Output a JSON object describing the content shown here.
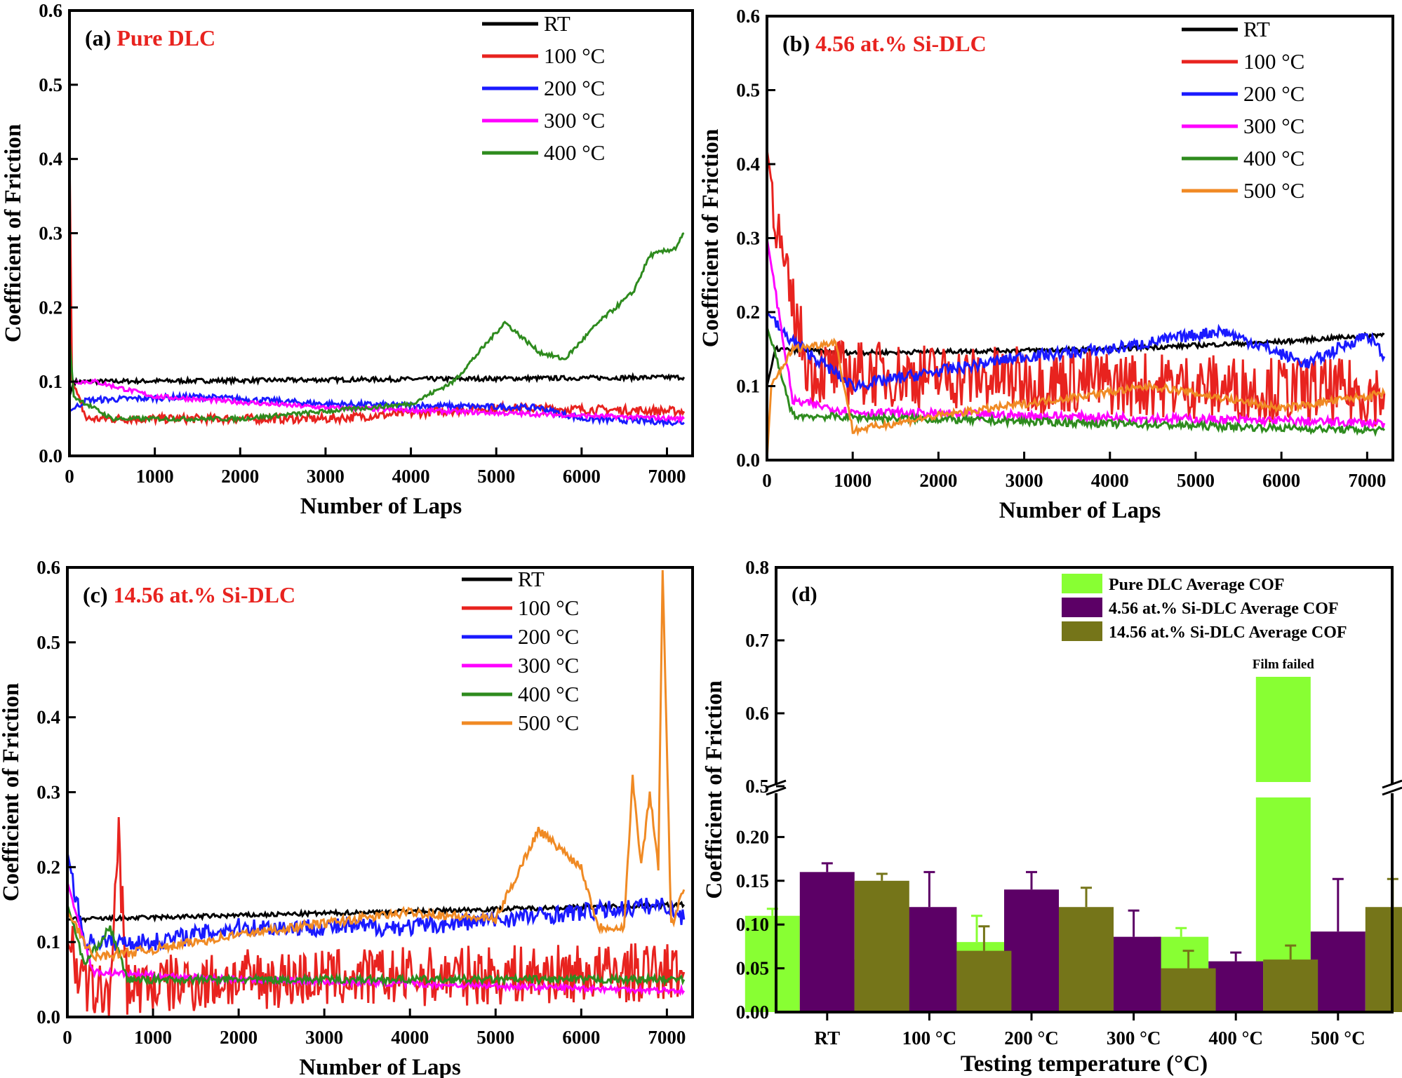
{
  "colors": {
    "RT": "#000000",
    "100": "#e8231f",
    "200": "#1a1aff",
    "300": "#ff00ff",
    "400": "#2e8b1e",
    "500": "#f08a24",
    "pure": "#88ff33",
    "si456": "#5c0066",
    "si1456": "#757519",
    "title_red": "#e8231f"
  },
  "chart_data": [
    {
      "type": "line",
      "panel": "(a)",
      "title": "Pure DLC",
      "xlabel": "Number of Laps",
      "ylabel": "Coefficient of Friction",
      "xlim": [
        0,
        7300
      ],
      "ylim": [
        0,
        0.6
      ],
      "xticks": [
        "0",
        "1000",
        "2000",
        "3000",
        "4000",
        "5000",
        "6000",
        "7000"
      ],
      "yticks": [
        "0.0",
        "0.1",
        "0.2",
        "0.3",
        "0.4",
        "0.5",
        "0.6"
      ],
      "series": [
        {
          "name": "RT",
          "key": "RT",
          "noise": 0.003,
          "points": [
            [
              0,
              0.08
            ],
            [
              50,
              0.1
            ],
            [
              7200,
              0.106
            ]
          ]
        },
        {
          "name": "100 °C",
          "key": "100",
          "noise": 0.006,
          "points": [
            [
              0,
              0.42
            ],
            [
              30,
              0.1
            ],
            [
              200,
              0.05
            ],
            [
              3000,
              0.05
            ],
            [
              5000,
              0.065
            ],
            [
              7200,
              0.06
            ]
          ]
        },
        {
          "name": "200 °C",
          "key": "200",
          "noise": 0.004,
          "points": [
            [
              0,
              0.06
            ],
            [
              200,
              0.075
            ],
            [
              1500,
              0.08
            ],
            [
              3000,
              0.07
            ],
            [
              5500,
              0.065
            ],
            [
              6000,
              0.05
            ],
            [
              7200,
              0.045
            ]
          ]
        },
        {
          "name": "300 °C",
          "key": "300",
          "noise": 0.003,
          "points": [
            [
              0,
              0.1
            ],
            [
              300,
              0.1
            ],
            [
              1000,
              0.08
            ],
            [
              3000,
              0.065
            ],
            [
              7200,
              0.05
            ]
          ]
        },
        {
          "name": "400 °C",
          "key": "400",
          "noise": 0.003,
          "points": [
            [
              0,
              0.16
            ],
            [
              50,
              0.08
            ],
            [
              500,
              0.05
            ],
            [
              2000,
              0.05
            ],
            [
              4000,
              0.07
            ],
            [
              4500,
              0.1
            ],
            [
              5100,
              0.18
            ],
            [
              5500,
              0.14
            ],
            [
              5800,
              0.13
            ],
            [
              6200,
              0.18
            ],
            [
              6600,
              0.22
            ],
            [
              6800,
              0.27
            ],
            [
              7100,
              0.28
            ],
            [
              7200,
              0.3
            ]
          ]
        }
      ]
    },
    {
      "type": "line",
      "panel": "(b)",
      "title": "4.56 at.% Si-DLC",
      "xlabel": "Number of Laps",
      "ylabel": "Coefficient of Friction",
      "xlim": [
        0,
        7300
      ],
      "ylim": [
        0,
        0.6
      ],
      "xticks": [
        "0",
        "1000",
        "2000",
        "3000",
        "4000",
        "5000",
        "6000",
        "7000"
      ],
      "yticks": [
        "0.0",
        "0.1",
        "0.2",
        "0.3",
        "0.4",
        "0.5",
        "0.6"
      ],
      "series": [
        {
          "name": "RT",
          "key": "RT",
          "noise": 0.003,
          "points": [
            [
              0,
              0.1
            ],
            [
              100,
              0.15
            ],
            [
              1000,
              0.145
            ],
            [
              4000,
              0.15
            ],
            [
              6000,
              0.16
            ],
            [
              7200,
              0.17
            ]
          ]
        },
        {
          "name": "100 °C",
          "key": "100",
          "noise": 0.045,
          "points": [
            [
              0,
              0.42
            ],
            [
              200,
              0.25
            ],
            [
              500,
              0.12
            ],
            [
              7200,
              0.09
            ]
          ]
        },
        {
          "name": "200 °C",
          "key": "200",
          "noise": 0.008,
          "points": [
            [
              0,
              0.2
            ],
            [
              200,
              0.17
            ],
            [
              1000,
              0.1
            ],
            [
              3000,
              0.14
            ],
            [
              4000,
              0.15
            ],
            [
              5300,
              0.175
            ],
            [
              6300,
              0.13
            ],
            [
              7000,
              0.17
            ],
            [
              7200,
              0.14
            ]
          ]
        },
        {
          "name": "300 °C",
          "key": "300",
          "noise": 0.006,
          "points": [
            [
              0,
              0.3
            ],
            [
              300,
              0.08
            ],
            [
              1000,
              0.065
            ],
            [
              7200,
              0.05
            ]
          ]
        },
        {
          "name": "400 °C",
          "key": "400",
          "noise": 0.005,
          "points": [
            [
              0,
              0.18
            ],
            [
              300,
              0.06
            ],
            [
              7200,
              0.04
            ]
          ]
        },
        {
          "name": "500 °C",
          "key": "500",
          "noise": 0.005,
          "points": [
            [
              0,
              0.0
            ],
            [
              50,
              0.1
            ],
            [
              300,
              0.15
            ],
            [
              800,
              0.16
            ],
            [
              1000,
              0.04
            ],
            [
              2000,
              0.06
            ],
            [
              4500,
              0.1
            ],
            [
              6000,
              0.07
            ],
            [
              7200,
              0.09
            ]
          ]
        }
      ]
    },
    {
      "type": "line",
      "panel": "(c)",
      "title": "14.56 at.% Si-DLC",
      "xlabel": "Number of Laps",
      "ylabel": "Coefficient of Friction",
      "xlim": [
        0,
        7300
      ],
      "ylim": [
        0,
        0.6
      ],
      "xticks": [
        "0",
        "1000",
        "2000",
        "3000",
        "4000",
        "5000",
        "6000",
        "7000"
      ],
      "yticks": [
        "0.0",
        "0.1",
        "0.2",
        "0.3",
        "0.4",
        "0.5",
        "0.6"
      ],
      "series": [
        {
          "name": "RT",
          "key": "RT",
          "noise": 0.003,
          "points": [
            [
              0,
              0.13
            ],
            [
              7200,
              0.15
            ]
          ]
        },
        {
          "name": "100 °C",
          "key": "100",
          "noise": 0.04,
          "points": [
            [
              0,
              0.1
            ],
            [
              200,
              0.04
            ],
            [
              500,
              0.03
            ],
            [
              600,
              0.23
            ],
            [
              700,
              0.04
            ],
            [
              2000,
              0.05
            ],
            [
              7200,
              0.06
            ]
          ]
        },
        {
          "name": "200 °C",
          "key": "200",
          "noise": 0.012,
          "points": [
            [
              0,
              0.22
            ],
            [
              200,
              0.1
            ],
            [
              1000,
              0.1
            ],
            [
              2000,
              0.12
            ],
            [
              4000,
              0.12
            ],
            [
              7000,
              0.15
            ],
            [
              7200,
              0.13
            ]
          ]
        },
        {
          "name": "300 °C",
          "key": "300",
          "noise": 0.004,
          "points": [
            [
              0,
              0.18
            ],
            [
              300,
              0.06
            ],
            [
              2000,
              0.05
            ],
            [
              7200,
              0.035
            ]
          ]
        },
        {
          "name": "400 °C",
          "key": "400",
          "noise": 0.005,
          "points": [
            [
              0,
              0.15
            ],
            [
              200,
              0.07
            ],
            [
              500,
              0.12
            ],
            [
              700,
              0.05
            ],
            [
              7200,
              0.05
            ]
          ]
        },
        {
          "name": "500 °C",
          "key": "500",
          "noise": 0.006,
          "points": [
            [
              0,
              0.14
            ],
            [
              300,
              0.08
            ],
            [
              1000,
              0.09
            ],
            [
              2000,
              0.11
            ],
            [
              4000,
              0.14
            ],
            [
              5000,
              0.13
            ],
            [
              5500,
              0.25
            ],
            [
              6000,
              0.2
            ],
            [
              6200,
              0.12
            ],
            [
              6500,
              0.12
            ],
            [
              6600,
              0.32
            ],
            [
              6700,
              0.2
            ],
            [
              6800,
              0.3
            ],
            [
              6900,
              0.2
            ],
            [
              6950,
              0.6
            ],
            [
              7050,
              0.12
            ],
            [
              7200,
              0.17
            ]
          ]
        }
      ]
    },
    {
      "type": "bar",
      "panel": "(d)",
      "xlabel": "Testing temperature (°C)",
      "ylabel": "Coefficient of Friction",
      "categories": [
        "RT",
        "100 °C",
        "200 °C",
        "300 °C",
        "400 °C",
        "500 °C"
      ],
      "yticks_lower": [
        "0.00",
        "0.05",
        "0.10",
        "0.15",
        "0.20"
      ],
      "yticks_upper": [
        "0.5",
        "0.6",
        "0.7",
        "0.8"
      ],
      "axis_break": [
        0.25,
        0.5
      ],
      "ylim": [
        0,
        0.8
      ],
      "annotation": "Film failed",
      "series": [
        {
          "name": "Pure DLC Average COF",
          "key": "pure",
          "values": [
            0.11,
            0.06,
            0.08,
            0.075,
            0.086,
            0.65
          ],
          "errors": [
            0.008,
            0.02,
            0.03,
            0.01,
            0.01,
            0
          ]
        },
        {
          "name": "4.56 at.% Si-DLC Average COF",
          "key": "si456",
          "values": [
            0.16,
            0.12,
            0.14,
            0.086,
            0.058,
            0.092
          ],
          "errors": [
            0.01,
            0.04,
            0.02,
            0.03,
            0.01,
            0.06
          ]
        },
        {
          "name": "14.56 at.% Si-DLC Average COF",
          "key": "si1456",
          "values": [
            0.15,
            0.07,
            0.12,
            0.05,
            0.06,
            0.12
          ],
          "errors": [
            0.008,
            0.028,
            0.022,
            0.02,
            0.016,
            0.032
          ]
        }
      ]
    }
  ]
}
